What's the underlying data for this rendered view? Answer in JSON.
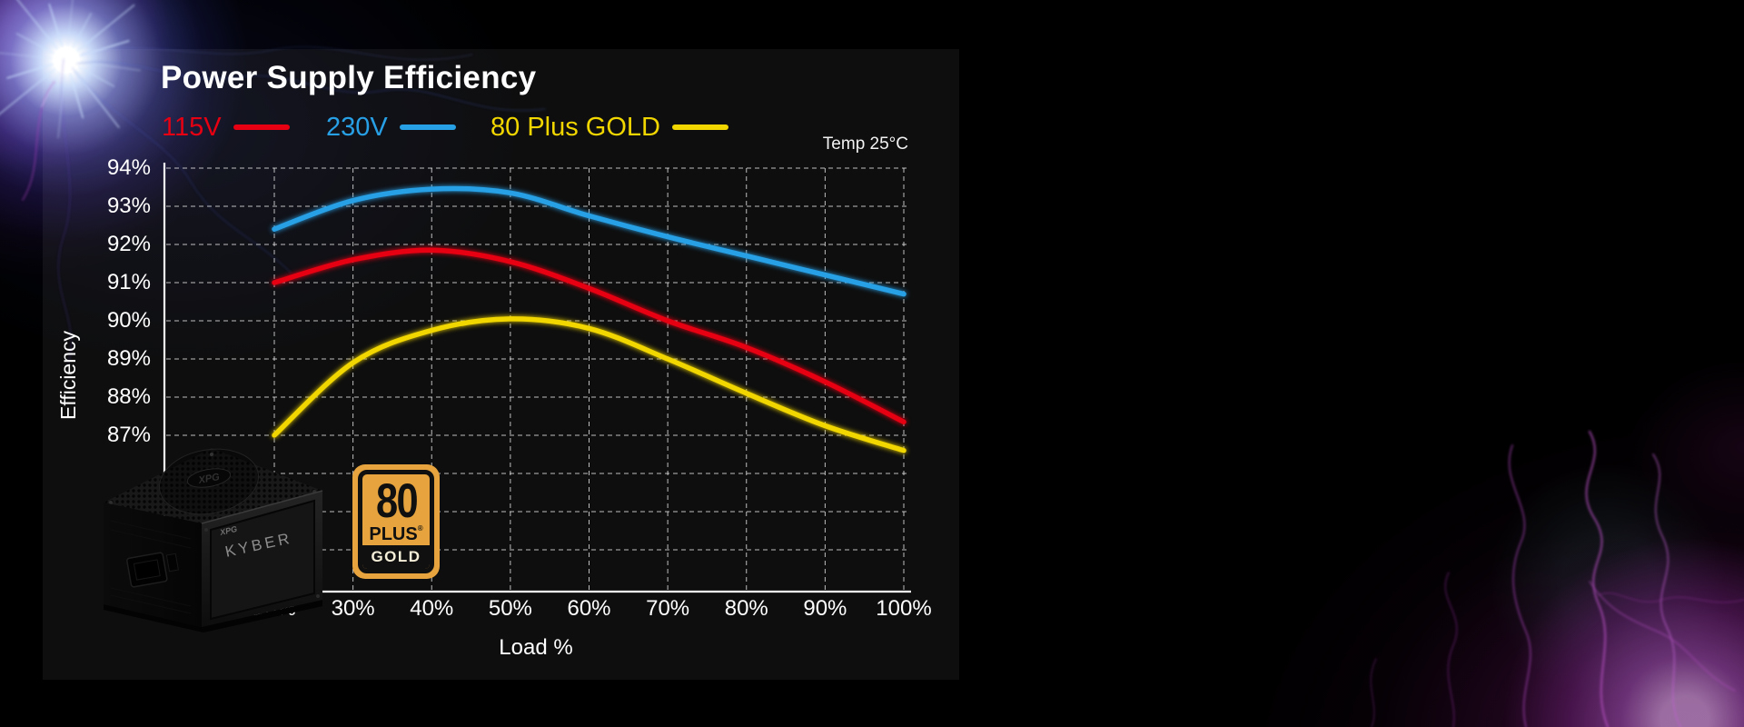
{
  "page": {
    "background": "#000000",
    "panel_background": "#0e0e0e"
  },
  "header": {
    "title": "Power Supply Efficiency",
    "temp_note": "Temp 25°C"
  },
  "chart_data": {
    "type": "line",
    "title": "Power Supply Efficiency",
    "xlabel": "Load %",
    "ylabel": "Efficiency",
    "annotation": "Temp 25°C",
    "x": [
      20,
      30,
      40,
      50,
      60,
      70,
      80,
      90,
      100
    ],
    "x_tick_labels": [
      "20%",
      "30%",
      "40%",
      "50%",
      "60%",
      "70%",
      "80%",
      "90%",
      "100%"
    ],
    "y_tick_labels": [
      "94%",
      "93%",
      "92%",
      "91%",
      "90%",
      "89%",
      "88%",
      "87%"
    ],
    "y_tick_values": [
      94,
      93,
      92,
      91,
      90,
      89,
      88,
      87
    ],
    "y_grid_unlabeled_values": [
      86,
      85,
      84
    ],
    "ylim": [
      82.9,
      94
    ],
    "grid": "dashed",
    "legend_position": "top-left",
    "series": [
      {
        "name": "115V",
        "color": "#e60012",
        "values": [
          91.0,
          91.6,
          91.85,
          91.55,
          90.85,
          90.0,
          89.3,
          88.4,
          87.35
        ]
      },
      {
        "name": "230V",
        "color": "#28a0e6",
        "values": [
          92.4,
          93.15,
          93.45,
          93.35,
          92.75,
          92.2,
          91.7,
          91.2,
          90.7
        ]
      },
      {
        "name": "80 Plus GOLD",
        "color": "#f1d600",
        "values": [
          87.0,
          88.9,
          89.75,
          90.05,
          89.8,
          89.0,
          88.1,
          87.25,
          86.6
        ]
      }
    ]
  },
  "badge": {
    "number": "80",
    "plus_label": "PLUS",
    "registered_mark": "®",
    "tier_label": "GOLD",
    "gold_color": "#e7a43e"
  },
  "product": {
    "brand_logo_top": "XPG",
    "brand_logo_side": "XPG",
    "model_name": "KYBER"
  }
}
